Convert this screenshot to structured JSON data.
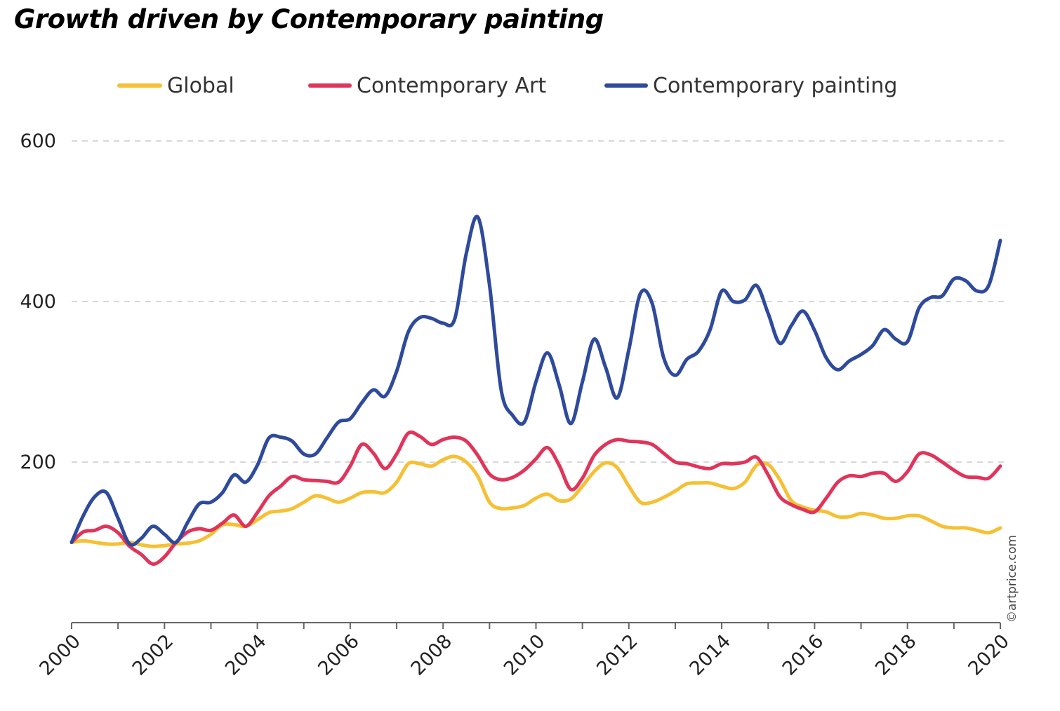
{
  "chart_data": {
    "type": "line",
    "title": "Growth driven by Contemporary painting",
    "xlabel": "",
    "ylabel": "",
    "xlim": [
      2000,
      2020
    ],
    "ylim": [
      0,
      600
    ],
    "y_ticks": [
      "200",
      "400",
      "600"
    ],
    "x_ticks": [
      "2000",
      "2002",
      "2004",
      "2006",
      "2008",
      "2010",
      "2012",
      "2014",
      "2016",
      "2018",
      "2020"
    ],
    "grid": "horizontal dashed",
    "legend": "top",
    "credit": "©artprice.com",
    "colors": {
      "global": "#f5c033",
      "contemporary_art": "#e0345a",
      "contemporary_painting": "#2e4a9c",
      "grid": "#cccccc",
      "axis": "#666666"
    },
    "x": [
      2000,
      2000.25,
      2000.5,
      2000.75,
      2001,
      2001.25,
      2001.5,
      2001.75,
      2002,
      2002.25,
      2002.5,
      2002.75,
      2003,
      2003.25,
      2003.5,
      2003.75,
      2004,
      2004.25,
      2004.5,
      2004.75,
      2005,
      2005.25,
      2005.5,
      2005.75,
      2006,
      2006.25,
      2006.5,
      2006.75,
      2007,
      2007.25,
      2007.5,
      2007.75,
      2008,
      2008.25,
      2008.5,
      2008.75,
      2009,
      2009.25,
      2009.5,
      2009.75,
      2010,
      2010.25,
      2010.5,
      2010.75,
      2011,
      2011.25,
      2011.5,
      2011.75,
      2012,
      2012.25,
      2012.5,
      2012.75,
      2013,
      2013.25,
      2013.5,
      2013.75,
      2014,
      2014.25,
      2014.5,
      2014.75,
      2015,
      2015.25,
      2015.5,
      2015.75,
      2016,
      2016.25,
      2016.5,
      2016.75,
      2017,
      2017.25,
      2017.5,
      2017.75,
      2018,
      2018.25,
      2018.5,
      2018.75,
      2019,
      2019.25,
      2019.5,
      2019.75,
      2020
    ],
    "series": [
      {
        "key": "global",
        "name": "Global",
        "values": [
          100,
          102,
          100,
          98,
          98,
          100,
          97,
          95,
          96,
          98,
          99,
          102,
          110,
          122,
          122,
          120,
          128,
          137,
          139,
          142,
          150,
          158,
          155,
          150,
          155,
          162,
          163,
          162,
          175,
          198,
          198,
          195,
          203,
          207,
          200,
          182,
          150,
          142,
          143,
          146,
          155,
          160,
          152,
          154,
          170,
          188,
          199,
          193,
          170,
          150,
          150,
          156,
          164,
          173,
          174,
          174,
          170,
          167,
          175,
          196,
          197,
          178,
          152,
          144,
          140,
          138,
          132,
          132,
          136,
          134,
          130,
          130,
          133,
          133,
          127,
          120,
          118,
          118,
          115,
          112,
          118
        ]
      },
      {
        "key": "contemporary_art",
        "name": "Contemporary Art",
        "values": [
          100,
          113,
          115,
          120,
          112,
          95,
          85,
          73,
          82,
          100,
          113,
          117,
          115,
          124,
          134,
          120,
          137,
          158,
          170,
          182,
          178,
          177,
          176,
          175,
          195,
          222,
          211,
          192,
          210,
          236,
          232,
          222,
          228,
          231,
          226,
          208,
          185,
          178,
          181,
          190,
          204,
          218,
          196,
          166,
          180,
          208,
          222,
          228,
          226,
          225,
          222,
          211,
          200,
          198,
          194,
          192,
          198,
          198,
          200,
          206,
          184,
          157,
          147,
          141,
          138,
          155,
          175,
          183,
          182,
          186,
          186,
          176,
          188,
          210,
          209,
          200,
          190,
          182,
          181,
          180,
          195
        ]
      },
      {
        "key": "contemporary_painting",
        "name": "Contemporary painting",
        "values": [
          100,
          133,
          157,
          162,
          130,
          98,
          105,
          120,
          110,
          100,
          125,
          148,
          150,
          162,
          184,
          175,
          196,
          230,
          231,
          226,
          210,
          210,
          230,
          250,
          254,
          274,
          290,
          282,
          313,
          362,
          380,
          379,
          373,
          378,
          460,
          505,
          420,
          290,
          258,
          250,
          300,
          336,
          296,
          248,
          300,
          353,
          318,
          280,
          340,
          410,
          398,
          330,
          308,
          328,
          338,
          365,
          413,
          400,
          402,
          420,
          385,
          348,
          370,
          388,
          364,
          330,
          315,
          326,
          334,
          345,
          365,
          353,
          350,
          392,
          405,
          407,
          428,
          426,
          413,
          420,
          476
        ]
      }
    ]
  }
}
